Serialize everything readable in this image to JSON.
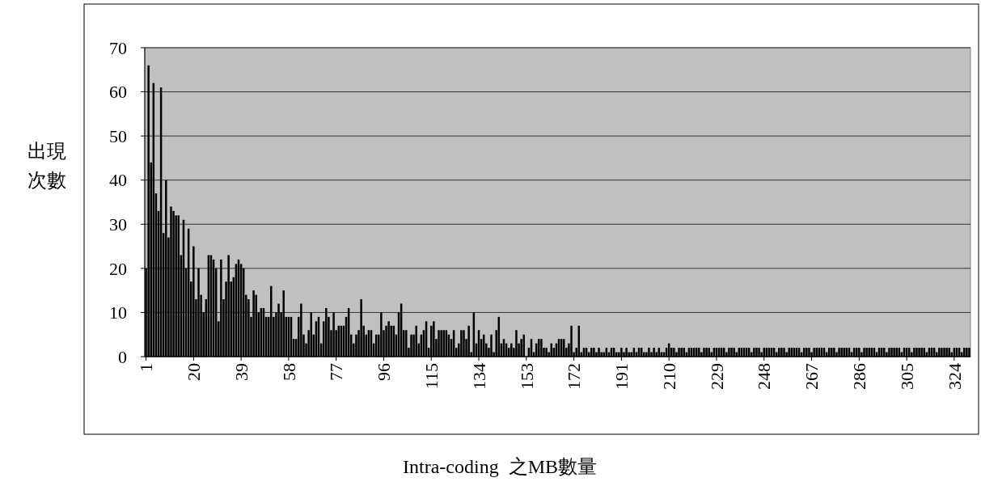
{
  "chart_data": {
    "type": "bar",
    "xlabel": "Intra-coding  之MB數量",
    "ylabel": "出現次數",
    "categories": [
      "1",
      null,
      null,
      null,
      null,
      null,
      null,
      null,
      null,
      null,
      null,
      null,
      null,
      null,
      null,
      null,
      null,
      null,
      null,
      "20",
      null,
      null,
      null,
      null,
      null,
      null,
      null,
      null,
      null,
      null,
      null,
      null,
      null,
      null,
      null,
      null,
      null,
      null,
      "39",
      null,
      null,
      null,
      null,
      null,
      null,
      null,
      null,
      null,
      null,
      null,
      null,
      null,
      null,
      null,
      null,
      null,
      null,
      "58",
      null,
      null,
      null,
      null,
      null,
      null,
      null,
      null,
      null,
      null,
      null,
      null,
      null,
      null,
      null,
      null,
      null,
      null,
      "77",
      null,
      null,
      null,
      null,
      null,
      null,
      null,
      null,
      null,
      null,
      null,
      null,
      null,
      null,
      null,
      null,
      null,
      null,
      "96",
      null,
      null,
      null,
      null,
      null,
      null,
      null,
      null,
      null,
      null,
      null,
      null,
      null,
      null,
      null,
      null,
      null,
      null,
      "115",
      null,
      null,
      null,
      null,
      null,
      null,
      null,
      null,
      null,
      null,
      null,
      null,
      null,
      null,
      null,
      null,
      null,
      null,
      "134",
      null,
      null,
      null,
      null,
      null,
      null,
      null,
      null,
      null,
      null,
      null,
      null,
      null,
      null,
      null,
      null,
      null,
      null,
      "153",
      null,
      null,
      null,
      null,
      null,
      null,
      null,
      null,
      null,
      null,
      null,
      null,
      null,
      null,
      null,
      null,
      null,
      null,
      "172",
      null,
      null,
      null,
      null,
      null,
      null,
      null,
      null,
      null,
      null,
      null,
      null,
      null,
      null,
      null,
      null,
      null,
      null,
      "191",
      null,
      null,
      null,
      null,
      null,
      null,
      null,
      null,
      null,
      null,
      null,
      null,
      null,
      null,
      null,
      null,
      null,
      null,
      "210",
      null,
      null,
      null,
      null,
      null,
      null,
      null,
      null,
      null,
      null,
      null,
      null,
      null,
      null,
      null,
      null,
      null,
      null,
      "229",
      null,
      null,
      null,
      null,
      null,
      null,
      null,
      null,
      null,
      null,
      null,
      null,
      null,
      null,
      null,
      null,
      null,
      null,
      "248",
      null,
      null,
      null,
      null,
      null,
      null,
      null,
      null,
      null,
      null,
      null,
      null,
      null,
      null,
      null,
      null,
      null,
      null,
      "267",
      null,
      null,
      null,
      null,
      null,
      null,
      null,
      null,
      null,
      null,
      null,
      null,
      null,
      null,
      null,
      null,
      null,
      null,
      "286",
      null,
      null,
      null,
      null,
      null,
      null,
      null,
      null,
      null,
      null,
      null,
      null,
      null,
      null,
      null,
      null,
      null,
      null,
      "305",
      null,
      null,
      null,
      null,
      null,
      null,
      null,
      null,
      null,
      null,
      null,
      null,
      null,
      null,
      null,
      null,
      null,
      null,
      "324",
      null,
      null,
      null,
      null,
      null,
      null
    ],
    "values": [
      20,
      66,
      44,
      62,
      37,
      33,
      61,
      28,
      40,
      27,
      34,
      33,
      32,
      32,
      23,
      31,
      20,
      29,
      17,
      25,
      13,
      20,
      14,
      10,
      13,
      23,
      23,
      22,
      20,
      8,
      22,
      13,
      17,
      23,
      17,
      18,
      21,
      22,
      21,
      20,
      14,
      13,
      9,
      15,
      14,
      10,
      11,
      11,
      9,
      9,
      16,
      9,
      10,
      12,
      10,
      15,
      9,
      9,
      9,
      4,
      4,
      9,
      12,
      5,
      3,
      6,
      10,
      5,
      8,
      9,
      3,
      8,
      11,
      9,
      6,
      10,
      6,
      7,
      7,
      7,
      9,
      11,
      5,
      3,
      5,
      6,
      13,
      7,
      5,
      6,
      6,
      3,
      5,
      5,
      10,
      6,
      7,
      8,
      7,
      7,
      5,
      10,
      12,
      6,
      6,
      2,
      5,
      5,
      7,
      3,
      5,
      6,
      8,
      2,
      7,
      8,
      4,
      6,
      6,
      6,
      6,
      5,
      4,
      6,
      2,
      3,
      6,
      6,
      4,
      7,
      1,
      10,
      3,
      6,
      4,
      5,
      3,
      2,
      5,
      1,
      6,
      9,
      3,
      4,
      3,
      2,
      3,
      2,
      6,
      3,
      4,
      5,
      0,
      2,
      4,
      1,
      3,
      4,
      4,
      2,
      2,
      1,
      3,
      2,
      3,
      4,
      4,
      4,
      2,
      3,
      7,
      1,
      2,
      7,
      1,
      2,
      2,
      1,
      2,
      2,
      1,
      2,
      1,
      1,
      2,
      1,
      2,
      2,
      1,
      1,
      2,
      1,
      2,
      1,
      1,
      2,
      1,
      2,
      2,
      1,
      1,
      2,
      1,
      2,
      1,
      2,
      1,
      1,
      2,
      3,
      2,
      2,
      1,
      2,
      2,
      2,
      1,
      2,
      2,
      2,
      2,
      2,
      1,
      2,
      2,
      2,
      1,
      2,
      2,
      2,
      2,
      2,
      1,
      2,
      2,
      2,
      1,
      2,
      2,
      2,
      2,
      2,
      1,
      2,
      2,
      2,
      1,
      2,
      2,
      2,
      2,
      2,
      1,
      2,
      2,
      2,
      1,
      2,
      2,
      2,
      2,
      2,
      1,
      2,
      2,
      2,
      1,
      2,
      2,
      2,
      2,
      2,
      1,
      2,
      2,
      2,
      1,
      2,
      2,
      2,
      2,
      2,
      1,
      2,
      2,
      2,
      1,
      2,
      2,
      2,
      2,
      2,
      1,
      2,
      2,
      2,
      1,
      2,
      2,
      2,
      2,
      2,
      1,
      2,
      2,
      2,
      1,
      2,
      2,
      2,
      2,
      2,
      1,
      2,
      2,
      2,
      1,
      2,
      2,
      2,
      2,
      2,
      1,
      2,
      2,
      2,
      1,
      2,
      2,
      2
    ],
    "color": "#000000",
    "ylim": [
      0,
      70
    ],
    "yticks": [
      0,
      10,
      20,
      30,
      40,
      50,
      60,
      70
    ],
    "grid": "y"
  }
}
